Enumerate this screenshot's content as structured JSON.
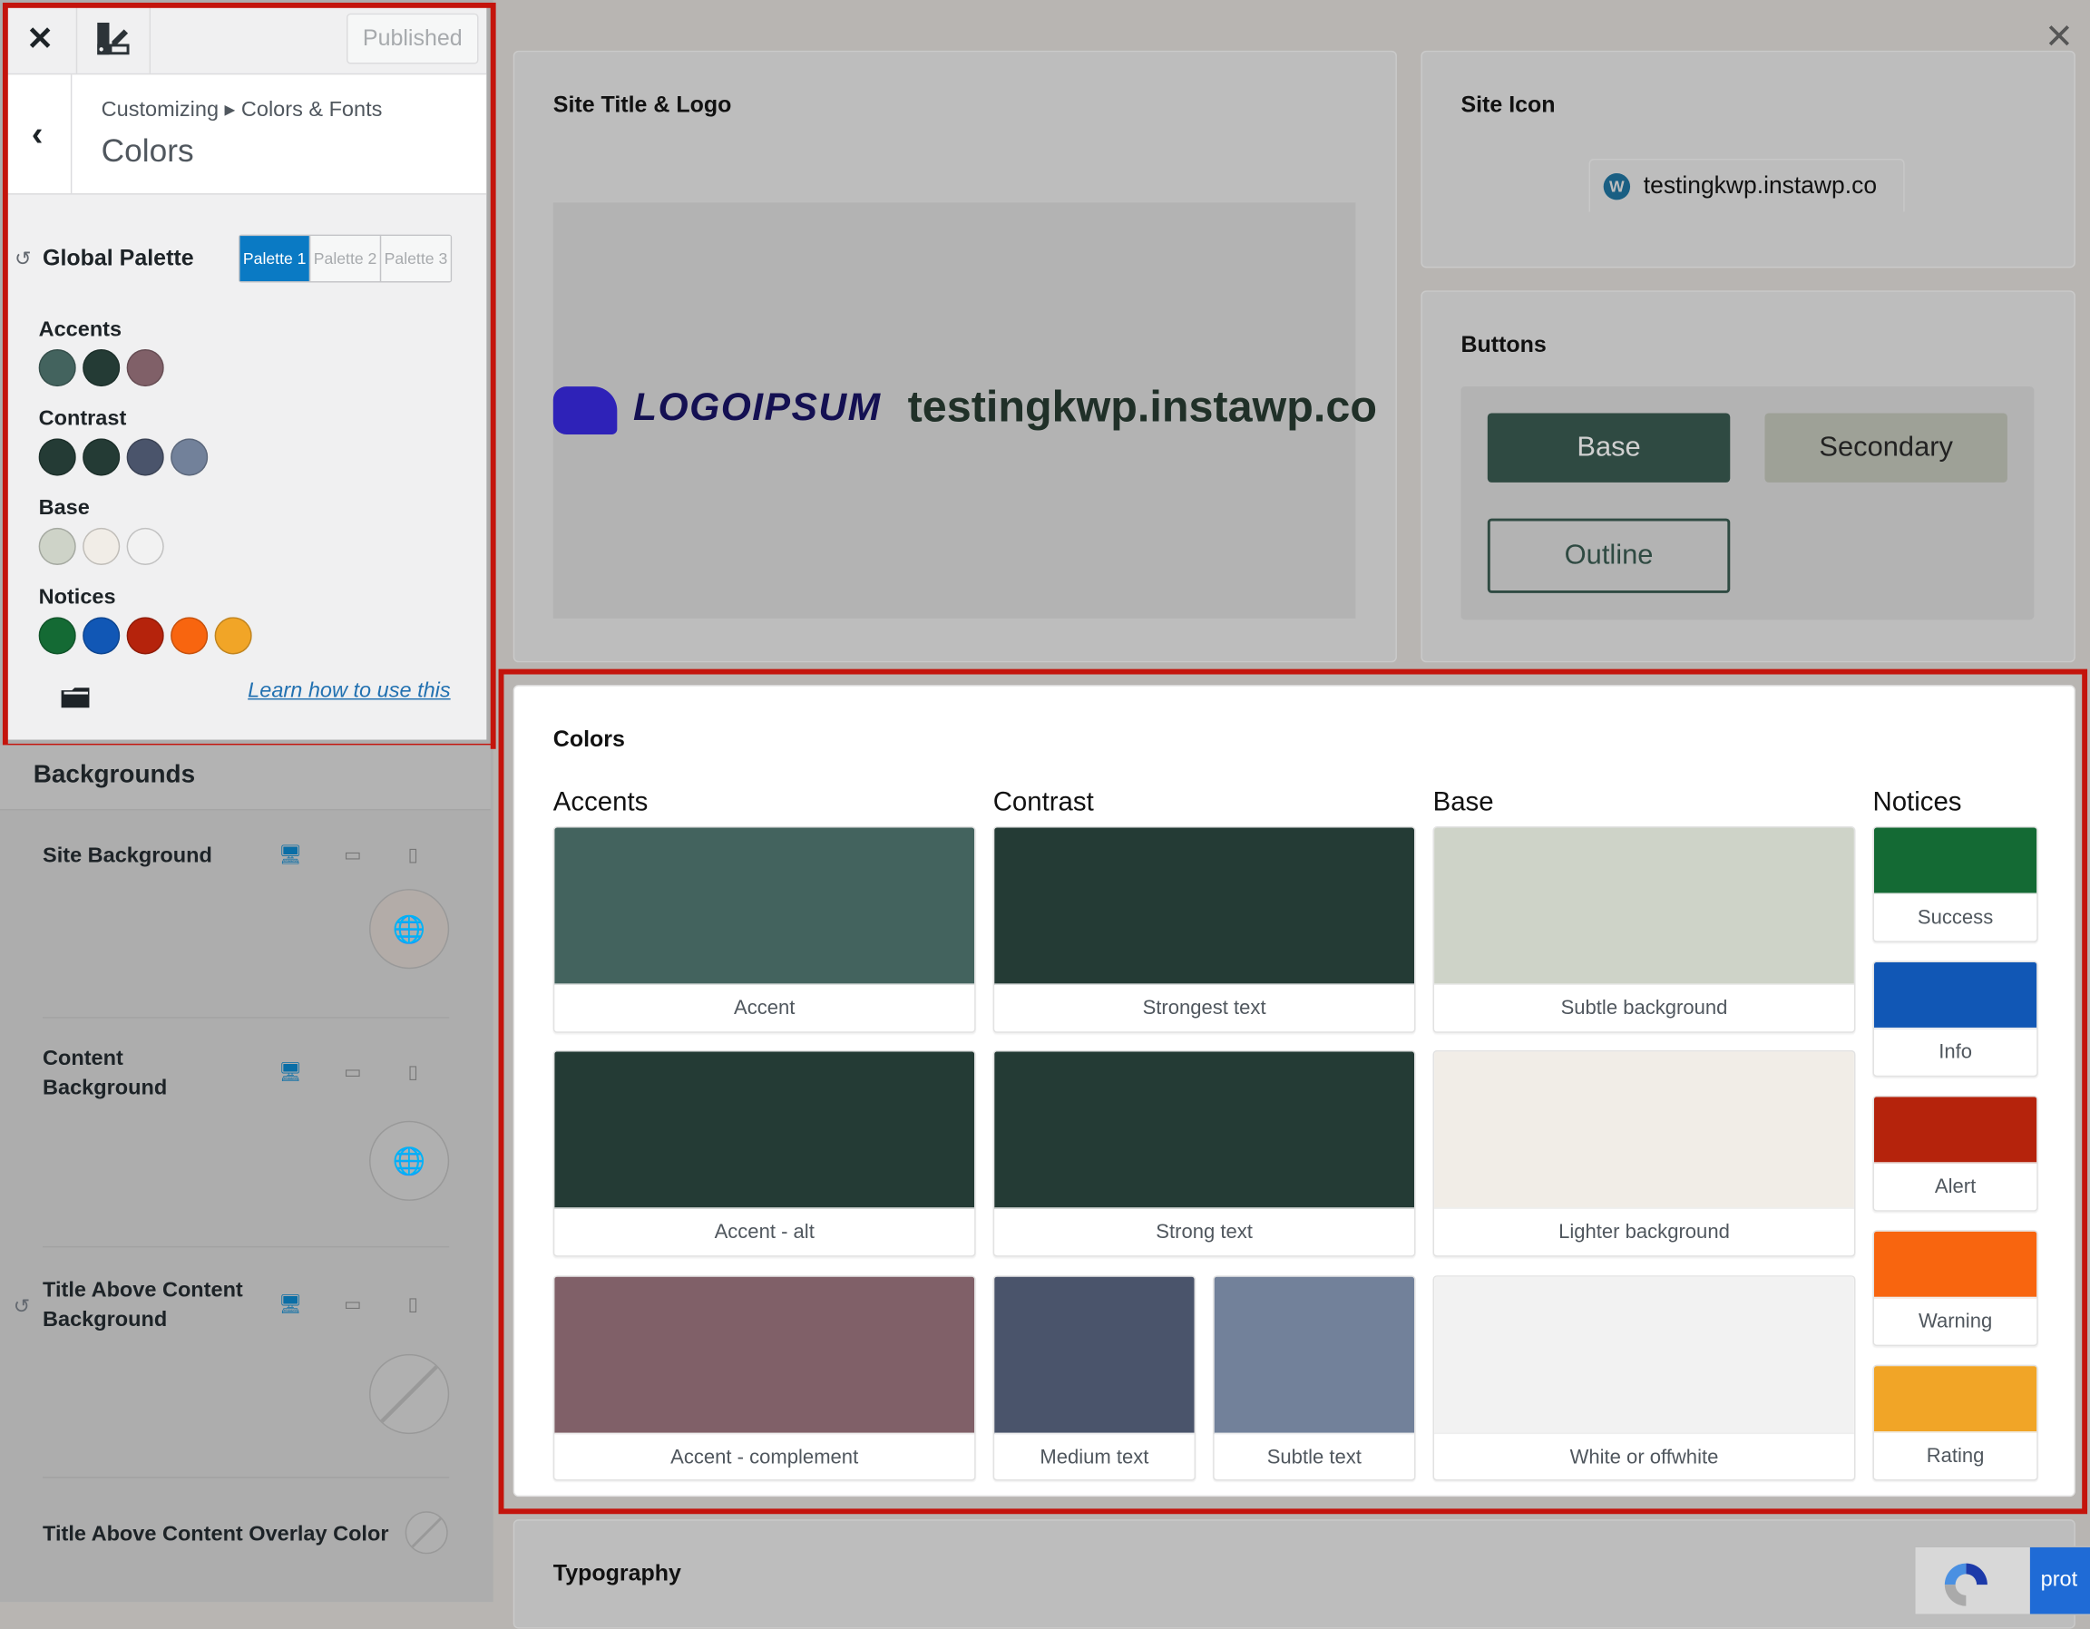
{
  "topbar": {
    "close_icon": "close-icon",
    "customizer_icon": "paint-edit-icon",
    "publish_label": "Published"
  },
  "breadcrumb": {
    "path": "Customizing ▸ Colors & Fonts",
    "title": "Colors"
  },
  "global_palette": {
    "label": "Global Palette",
    "tabs": [
      "Palette 1",
      "Palette 2",
      "Palette 3"
    ],
    "active_tab": "Palette 1",
    "groups": [
      {
        "label": "Accents",
        "colors": [
          "#43635e",
          "#243b35",
          "#806068"
        ]
      },
      {
        "label": "Contrast",
        "colors": [
          "#243b35",
          "#243b35",
          "#4a546b",
          "#72819a"
        ]
      },
      {
        "label": "Base",
        "colors": [
          "#ced3c8",
          "#f1ede7",
          "#f2f2f2"
        ]
      },
      {
        "label": "Notices",
        "colors": [
          "#146a34",
          "#1157b5",
          "#b5230c",
          "#f8650f",
          "#f1a527"
        ]
      }
    ],
    "learn_link": "Learn how to use this"
  },
  "backgrounds": {
    "heading": "Backgrounds",
    "items": [
      {
        "label": "Site Background"
      },
      {
        "label": "Content Background"
      },
      {
        "label": "Title Above Content Background"
      },
      {
        "label": "Title Above Content Overlay Color"
      }
    ]
  },
  "preview": {
    "site_title_card": {
      "title": "Site Title & Logo",
      "logo_text": "LOGOIPSUM",
      "site_name": "testingkwp.instawp.co"
    },
    "site_icon_card": {
      "title": "Site Icon",
      "tab_label": "testingkwp.instawp.co"
    },
    "buttons_card": {
      "title": "Buttons",
      "base": "Base",
      "secondary": "Secondary",
      "outline": "Outline",
      "colors": {
        "base_bg": "#2f4a42",
        "secondary_bg": "#9ea197",
        "outline_border": "#2f4a42"
      }
    },
    "colors_card": {
      "title": "Colors",
      "columns": {
        "accents": "Accents",
        "contrast": "Contrast",
        "base": "Base",
        "notices": "Notices"
      },
      "swatches": {
        "accent": {
          "label": "Accent",
          "color": "#43635e"
        },
        "accent_alt": {
          "label": "Accent - alt",
          "color": "#243b35"
        },
        "accent_complement": {
          "label": "Accent - complement",
          "color": "#806068"
        },
        "strongest_text": {
          "label": "Strongest text",
          "color": "#243b35"
        },
        "strong_text": {
          "label": "Strong text",
          "color": "#243b35"
        },
        "medium_text": {
          "label": "Medium text",
          "color": "#4a546b"
        },
        "subtle_text": {
          "label": "Subtle text",
          "color": "#72819a"
        },
        "subtle_background": {
          "label": "Subtle background",
          "color": "#ced3c8"
        },
        "lighter_background": {
          "label": "Lighter background",
          "color": "#f1ede7"
        },
        "white_offwhite": {
          "label": "White or offwhite",
          "color": "#f2f2f2"
        },
        "success": {
          "label": "Success",
          "color": "#146a34"
        },
        "info": {
          "label": "Info",
          "color": "#1157b5"
        },
        "alert": {
          "label": "Alert",
          "color": "#b5230c"
        },
        "warning": {
          "label": "Warning",
          "color": "#f8650f"
        },
        "rating": {
          "label": "Rating",
          "color": "#f1a527"
        }
      }
    },
    "typography_card": {
      "title": "Typography"
    },
    "recaptcha_text": "prot"
  },
  "highlight_color": "#c4140c"
}
